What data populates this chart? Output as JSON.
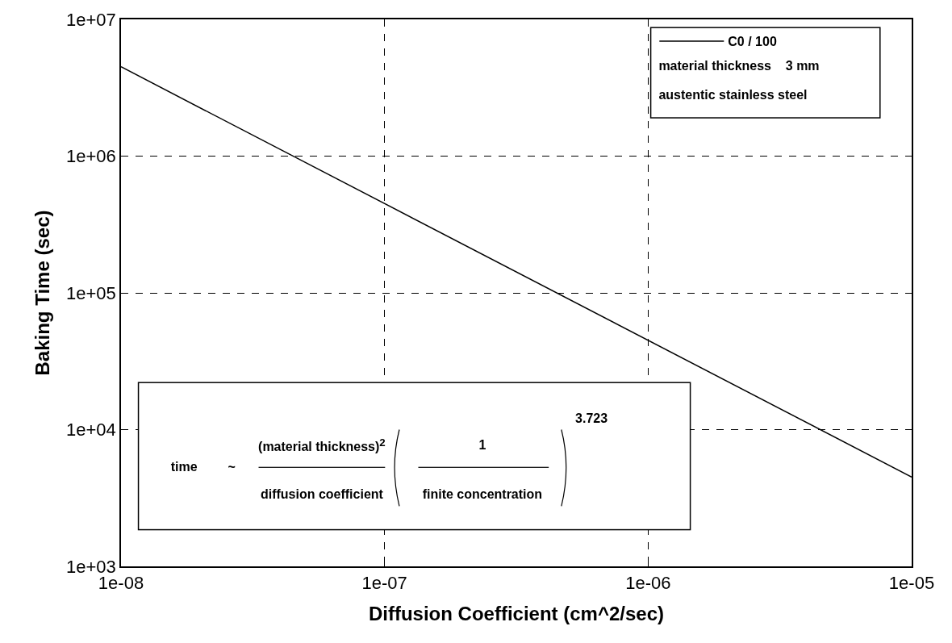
{
  "chart_data": {
    "type": "line",
    "xlabel": "Diffusion Coefficient (cm^2/sec)",
    "ylabel": "Baking Time (sec)",
    "x": [
      1e-08,
      1e-05
    ],
    "series": [
      {
        "name": "C0 / 100",
        "color": "#000000",
        "values": [
          4500000,
          4500
        ]
      }
    ],
    "log": "xy",
    "grid": true,
    "legend": "top right",
    "line_style": "solid",
    "marker": "none",
    "xlim": [
      1e-08,
      1e-05
    ],
    "xticks": [
      {
        "value": 1e-08,
        "label": "1e-08"
      },
      {
        "value": 1e-07,
        "label": "1e-07"
      },
      {
        "value": 1e-06,
        "label": "1e-06"
      },
      {
        "value": 1e-05,
        "label": "1e-05"
      }
    ],
    "ylim": [
      1000,
      10000000
    ],
    "yticks": [
      {
        "value": 1000,
        "label": "1e+03"
      },
      {
        "value": 10000,
        "label": "1e+04"
      },
      {
        "value": 100000,
        "label": "1e+05"
      },
      {
        "value": 1000000,
        "label": "1e+06"
      },
      {
        "value": 10000000,
        "label": "1e+07"
      }
    ],
    "annotations": [
      "material thickness    3 mm",
      "austentic stainless steel",
      "time",
      "~",
      "(material thickness)$^{2}$",
      "diffusion coefficient",
      "1",
      "finite concentration",
      "3.723"
    ]
  }
}
